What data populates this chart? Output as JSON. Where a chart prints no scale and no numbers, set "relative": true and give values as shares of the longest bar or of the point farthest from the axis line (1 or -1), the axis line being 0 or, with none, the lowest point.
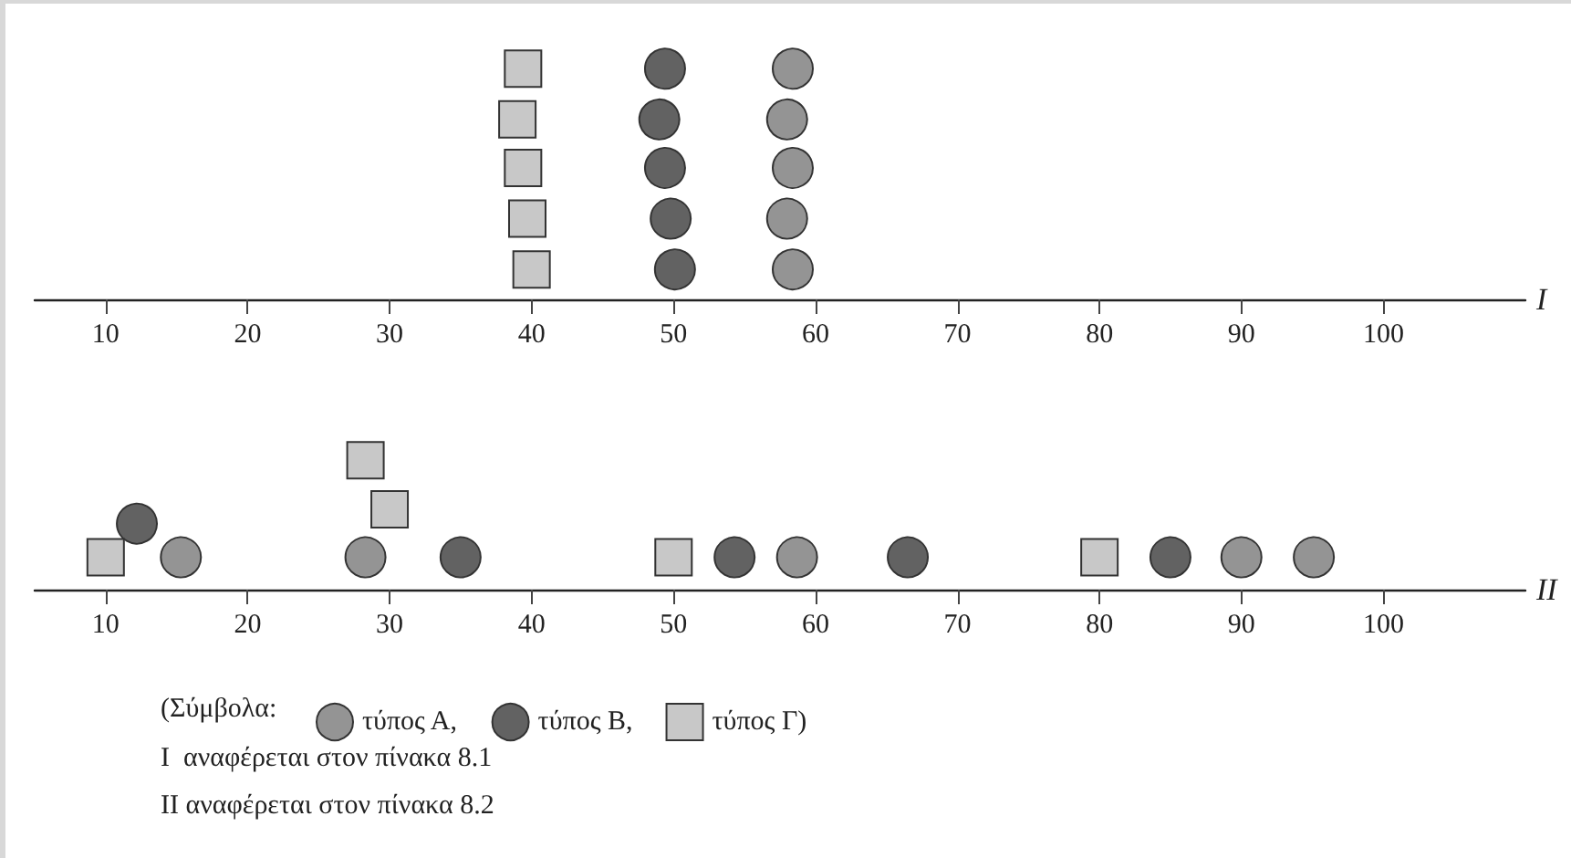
{
  "chart_data": [
    {
      "type": "scatter",
      "xlabel": "I",
      "xlim": [
        5,
        110
      ],
      "xticks": [
        10,
        20,
        30,
        40,
        50,
        60,
        70,
        80,
        90,
        100
      ],
      "relative": true,
      "tick_labels": "x",
      "grid": false,
      "legend": false,
      "series": [
        {
          "color": "#949494",
          "marker": "circle",
          "x": [
            58.4,
            58.0,
            58.4,
            58.0,
            58.4
          ],
          "values": [
            0.13,
            0.35,
            0.57,
            0.78,
            1
          ]
        },
        {
          "color": "#626262",
          "marker": "circle",
          "x": [
            50.1,
            49.8,
            49.4,
            49.0,
            49.4
          ],
          "values": [
            0.13,
            0.35,
            0.57,
            0.78,
            1
          ]
        },
        {
          "color": "#c8c8c8",
          "marker": "square",
          "x": [
            40.0,
            39.7,
            39.4,
            39.0,
            39.4
          ],
          "values": [
            0.13,
            0.35,
            0.57,
            0.78,
            1
          ]
        }
      ]
    },
    {
      "type": "scatter",
      "xlabel": "II",
      "xlim": [
        5,
        110
      ],
      "xticks": [
        10,
        20,
        30,
        40,
        50,
        60,
        70,
        80,
        90,
        100
      ],
      "relative": true,
      "tick_labels": "x",
      "grid": false,
      "legend": "bottom left",
      "legend_title": "(Σύμβολα:",
      "annotations": [
        "I  αναφέρεται στον πίνακα 8.1",
        "II αναφέρεται στον πίνακα 8.2"
      ],
      "series": [
        {
          "name": "τύπος Α,",
          "color": "#949494",
          "marker": "circle",
          "x": [
            15.3,
            28.3,
            58.7,
            90,
            95.1
          ],
          "values": [
            0.25,
            0.25,
            0.25,
            0.25,
            0.25
          ]
        },
        {
          "name": "τύπος Β,",
          "color": "#626262",
          "marker": "circle",
          "x": [
            12.2,
            35,
            54.3,
            66.5,
            85
          ],
          "values": [
            0.51,
            0.25,
            0.25,
            0.25,
            0.25
          ]
        },
        {
          "name": "τύπος Γ)",
          "color": "#c8c8c8",
          "marker": "square",
          "x": [
            10,
            28.3,
            30,
            50,
            80
          ],
          "values": [
            0.25,
            1,
            0.62,
            0.25,
            0.25
          ]
        }
      ]
    }
  ]
}
